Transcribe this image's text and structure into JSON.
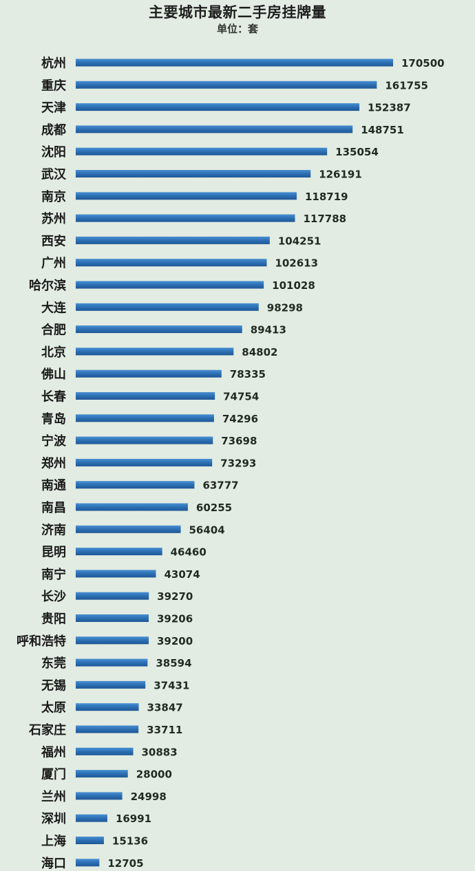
{
  "chart_data": {
    "type": "bar",
    "orientation": "horizontal",
    "title": "主要城市最新二手房挂牌量",
    "subtitle": "单位：套",
    "categories": [
      "杭州",
      "重庆",
      "天津",
      "成都",
      "沈阳",
      "武汉",
      "南京",
      "苏州",
      "西安",
      "广州",
      "哈尔滨",
      "大连",
      "合肥",
      "北京",
      "佛山",
      "长春",
      "青岛",
      "宁波",
      "郑州",
      "南通",
      "南昌",
      "济南",
      "昆明",
      "南宁",
      "长沙",
      "贵阳",
      "呼和浩特",
      "东莞",
      "无锡",
      "太原",
      "石家庄",
      "福州",
      "厦门",
      "兰州",
      "深圳",
      "上海",
      "海口"
    ],
    "values": [
      170500,
      161755,
      152387,
      148751,
      135054,
      126191,
      118719,
      117788,
      104251,
      102613,
      101028,
      98298,
      89413,
      84802,
      78335,
      74754,
      74296,
      73698,
      73293,
      63777,
      60255,
      56404,
      46460,
      43074,
      39270,
      39206,
      39200,
      38594,
      37431,
      33847,
      33711,
      30883,
      28000,
      24998,
      16991,
      15136,
      12705
    ],
    "bar_color": "#2c6fb4",
    "background_color": "#e2ece2",
    "grid": false,
    "legend": false
  }
}
